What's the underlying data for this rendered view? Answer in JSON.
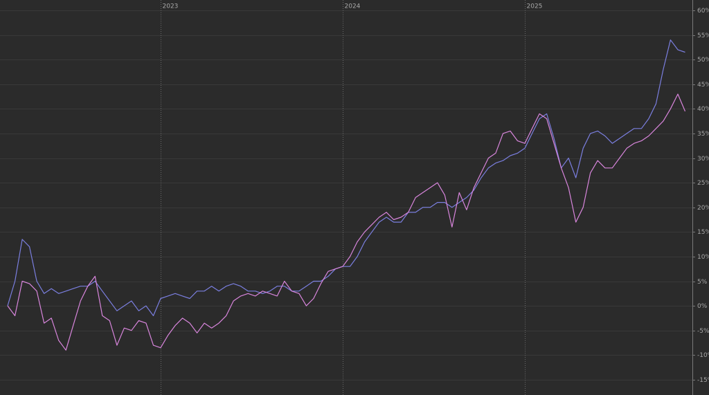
{
  "chart_data": {
    "type": "line",
    "x": [
      2022.16,
      2022.2,
      2022.24,
      2022.28,
      2022.32,
      2022.36,
      2022.4,
      2022.44,
      2022.48,
      2022.52,
      2022.56,
      2022.6,
      2022.64,
      2022.68,
      2022.72,
      2022.76,
      2022.8,
      2022.84,
      2022.88,
      2022.92,
      2022.96,
      2023,
      2023.04,
      2023.08,
      2023.12,
      2023.16,
      2023.2,
      2023.24,
      2023.28,
      2023.32,
      2023.36,
      2023.4,
      2023.44,
      2023.48,
      2023.52,
      2023.56,
      2023.6,
      2023.64,
      2023.68,
      2023.72,
      2023.76,
      2023.8,
      2023.84,
      2023.88,
      2023.92,
      2023.96,
      2024,
      2024.04,
      2024.08,
      2024.12,
      2024.16,
      2024.2,
      2024.24,
      2024.28,
      2024.32,
      2024.36,
      2024.4,
      2024.44,
      2024.48,
      2024.52,
      2024.56,
      2024.6,
      2024.64,
      2024.68,
      2024.72,
      2024.76,
      2024.8,
      2024.84,
      2024.88,
      2024.92,
      2024.96,
      2025,
      2025.04,
      2025.08,
      2025.12,
      2025.16,
      2025.2,
      2025.24,
      2025.28,
      2025.32,
      2025.36,
      2025.4,
      2025.44,
      2025.48,
      2025.52,
      2025.56,
      2025.6,
      2025.64,
      2025.68,
      2025.72,
      2025.76,
      2025.8,
      2025.84,
      2025.88
    ],
    "series": [
      {
        "color": "#7b7fe0",
        "values": [
          0,
          5,
          13.5,
          12,
          5,
          2.5,
          3.5,
          2.5,
          3,
          3.5,
          4,
          4,
          5,
          3,
          1,
          -1,
          0,
          1,
          -1,
          0,
          -2,
          1.5,
          2,
          2.5,
          2,
          1.5,
          3,
          3,
          4,
          3,
          4,
          4.5,
          4,
          3,
          3,
          2.5,
          3,
          4,
          4,
          3,
          3,
          4,
          5,
          5,
          6,
          7.5,
          8,
          8,
          10,
          13,
          15,
          17,
          18,
          17,
          17,
          19,
          19,
          20,
          20,
          21,
          21,
          20,
          21,
          22,
          23.5,
          26,
          28,
          29,
          29.5,
          30.5,
          31,
          32,
          35,
          38,
          39,
          34,
          28,
          30,
          26,
          32,
          35,
          35.5,
          34.5,
          33,
          34,
          35,
          36,
          36,
          38,
          41,
          48,
          54,
          52,
          51.5
        ]
      },
      {
        "color": "#d986dd",
        "values": [
          0,
          -2,
          5,
          4.5,
          3,
          -3.5,
          -2.5,
          -7,
          -9,
          -4,
          1,
          4,
          6,
          -2,
          -3,
          -8,
          -4.5,
          -5,
          -3,
          -3.5,
          -8,
          -8.5,
          -6,
          -4,
          -2.5,
          -3.5,
          -5.5,
          -3.5,
          -4.5,
          -3.5,
          -2,
          1,
          2,
          2.5,
          2,
          3,
          2.5,
          2,
          5,
          3,
          2.5,
          0,
          1.5,
          4.5,
          7,
          7.5,
          8,
          10,
          13,
          15,
          16.5,
          18,
          19,
          17.5,
          18,
          19,
          22,
          23,
          24,
          25,
          22.5,
          16,
          23,
          19.5,
          24,
          27,
          30,
          31,
          35,
          35.5,
          33.5,
          33,
          36,
          39,
          38,
          33,
          28,
          24,
          17,
          20,
          27,
          29.5,
          28,
          28,
          30,
          32,
          33,
          33.5,
          34.5,
          36,
          37.5,
          40,
          43,
          39.5
        ]
      }
    ],
    "xlim": [
      2022.118,
      2025.92
    ],
    "xticks": [
      {
        "value": 2023,
        "label": "2023"
      },
      {
        "value": 2024,
        "label": "2024"
      },
      {
        "value": 2025,
        "label": "2025"
      }
    ],
    "ylim": [
      -18.1,
      62.1
    ],
    "yticks": [
      {
        "value": -15,
        "label": "-15%"
      },
      {
        "value": -10,
        "label": "-10%"
      },
      {
        "value": -5,
        "label": "-5%"
      },
      {
        "value": 0,
        "label": "0%"
      },
      {
        "value": 5,
        "label": "5%"
      },
      {
        "value": 10,
        "label": "10%"
      },
      {
        "value": 15,
        "label": "15%"
      },
      {
        "value": 20,
        "label": "20%"
      },
      {
        "value": 25,
        "label": "25%"
      },
      {
        "value": 30,
        "label": "30%"
      },
      {
        "value": 35,
        "label": "35%"
      },
      {
        "value": 40,
        "label": "40%"
      },
      {
        "value": 45,
        "label": "45%"
      },
      {
        "value": 50,
        "label": "50%"
      },
      {
        "value": 55,
        "label": "55%"
      },
      {
        "value": 60,
        "label": "60%"
      }
    ],
    "grid": true
  }
}
